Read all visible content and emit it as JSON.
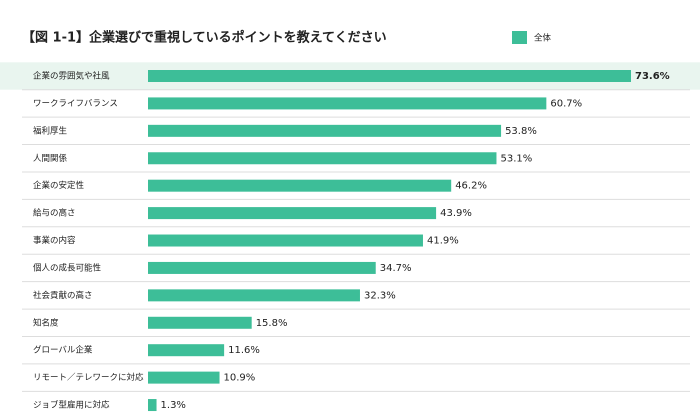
{
  "chart_data": {
    "type": "bar",
    "orientation": "horizontal",
    "title": "【図 1-1】企業選びで重視しているポイントを教えてください",
    "categories": [
      "企業の雰囲気や社風",
      "ワークライフバランス",
      "福利厚生",
      "人間関係",
      "企業の安定性",
      "給与の高さ",
      "事業の内容",
      "個人の成長可能性",
      "社会貢献の高さ",
      "知名度",
      "グローバル企業",
      "リモート／テレワークに対応",
      "ジョブ型雇用に対応"
    ],
    "series": [
      {
        "name": "全体",
        "color": "#3dbe98",
        "values": [
          73.6,
          60.7,
          53.8,
          53.1,
          46.2,
          43.9,
          41.9,
          34.7,
          32.3,
          15.8,
          11.6,
          10.9,
          1.3
        ],
        "value_labels": [
          "73.6%",
          "60.7%",
          "53.8%",
          "53.1%",
          "46.2%",
          "43.9%",
          "41.9%",
          "34.7%",
          "32.3%",
          "15.8%",
          "11.6%",
          "10.9%",
          "1.3%"
        ]
      }
    ],
    "highlight_color": "#e9f5ef"
  }
}
